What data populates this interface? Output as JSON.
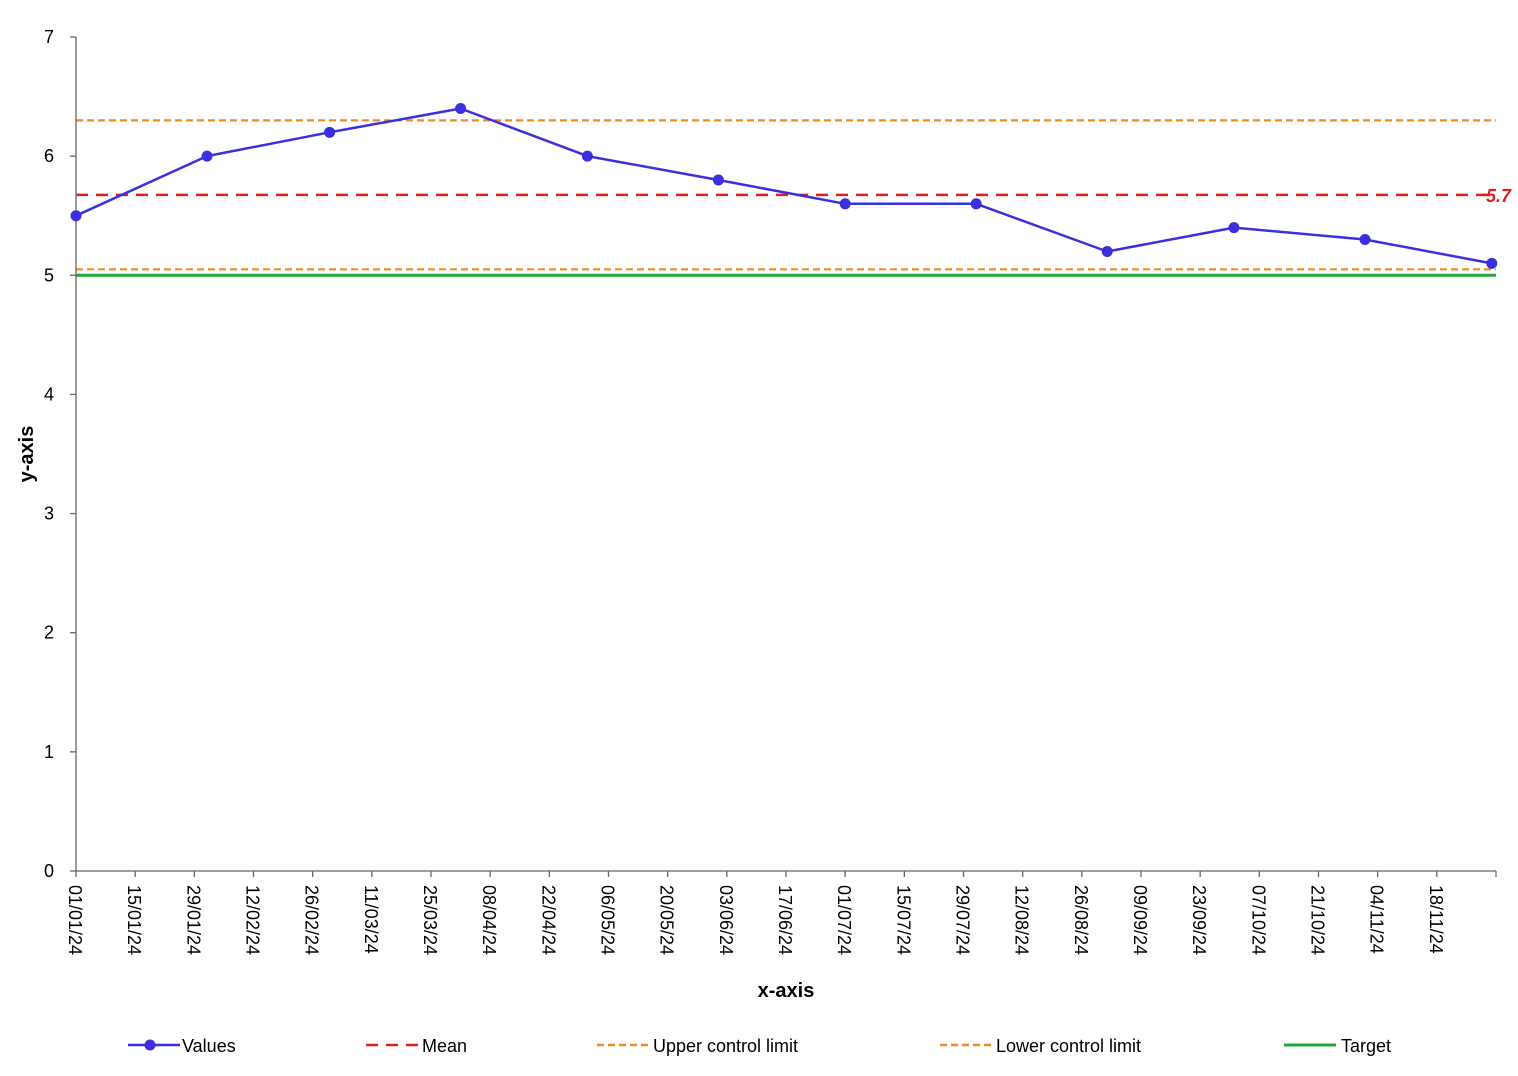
{
  "chart_data": {
    "type": "line",
    "xlabel": "x-axis",
    "ylabel": "y-axis",
    "ylim": [
      0,
      7
    ],
    "yticks": [
      "0",
      "1",
      "2",
      "3",
      "4",
      "5",
      "6",
      "7"
    ],
    "xlim": [
      "2024-01-01",
      "2024-12-02"
    ],
    "x_tick_labels": [
      "01/01/24",
      "15/01/24",
      "29/01/24",
      "12/02/24",
      "26/02/24",
      "11/03/24",
      "25/03/24",
      "08/04/24",
      "22/04/24",
      "06/05/24",
      "20/05/24",
      "03/06/24",
      "17/06/24",
      "01/07/24",
      "15/07/24",
      "29/07/24",
      "12/08/24",
      "26/08/24",
      "09/09/24",
      "23/09/24",
      "07/10/24",
      "21/10/24",
      "04/11/24",
      "18/11/24"
    ],
    "grid": false,
    "legend_position": "bottom",
    "series": [
      {
        "name": "Values",
        "color": "#3b2fe0",
        "style": "solid-with-markers",
        "x": [
          "2024-01-01",
          "2024-02-01",
          "2024-03-01",
          "2024-04-01",
          "2024-05-01",
          "2024-06-01",
          "2024-07-01",
          "2024-08-01",
          "2024-09-01",
          "2024-10-01",
          "2024-11-01",
          "2024-12-01"
        ],
        "y": [
          5.5,
          6.0,
          6.2,
          6.4,
          6.0,
          5.8,
          5.6,
          5.6,
          5.2,
          5.4,
          5.3,
          5.1
        ]
      },
      {
        "name": "Mean",
        "color": "#e02020",
        "style": "dashed",
        "value": 5.675,
        "label": "5.7"
      },
      {
        "name": "Upper control limit",
        "color": "#f08a24",
        "style": "dotted",
        "value": 6.3
      },
      {
        "name": "Lower control limit",
        "color": "#f08a24",
        "style": "dotted",
        "value": 5.05
      },
      {
        "name": "Target",
        "color": "#20a83c",
        "style": "solid",
        "value": 5.0
      }
    ]
  }
}
